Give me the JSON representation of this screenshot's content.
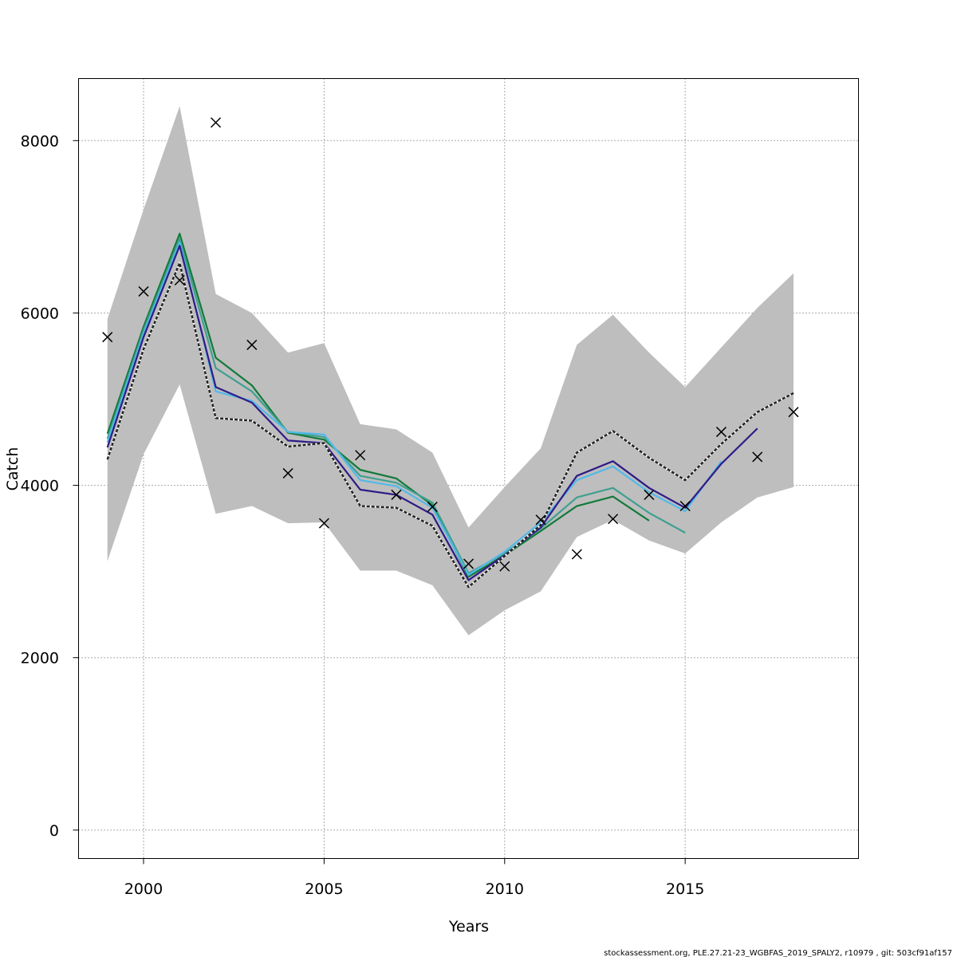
{
  "chart_data": {
    "type": "line",
    "xlabel": "Years",
    "ylabel": "Catch",
    "xlim": [
      1998.2,
      2019.8
    ],
    "ylim": [
      -330,
      8720
    ],
    "x_ticks": [
      2000,
      2005,
      2010,
      2015
    ],
    "y_ticks": [
      0,
      2000,
      4000,
      6000,
      8000
    ],
    "grid": true,
    "colors": {
      "band": "#bebebe",
      "base": "#222222",
      "s2017": "#2f1b87",
      "s2016": "#52b9e8",
      "s2015": "#3fa090",
      "s2014": "#127a3a"
    },
    "years": [
      1999,
      2000,
      2001,
      2002,
      2003,
      2004,
      2005,
      2006,
      2007,
      2008,
      2009,
      2010,
      2011,
      2012,
      2013,
      2014,
      2015,
      2016,
      2017,
      2018
    ],
    "band_upper": [
      5930,
      7200,
      8400,
      6220,
      6000,
      5540,
      5650,
      4710,
      4650,
      4380,
      3510,
      3980,
      4430,
      5630,
      5980,
      5540,
      5140,
      5600,
      6060,
      6460
    ],
    "band_lower": [
      3120,
      4360,
      5170,
      3670,
      3760,
      3560,
      3570,
      3010,
      3010,
      2840,
      2260,
      2550,
      2770,
      3400,
      3600,
      3360,
      3210,
      3570,
      3860,
      3980
    ],
    "base_line": [
      4300,
      5580,
      6580,
      4780,
      4750,
      4450,
      4490,
      3760,
      3740,
      3530,
      2820,
      3180,
      3540,
      4380,
      4630,
      4320,
      4060,
      4480,
      4850,
      5070
    ],
    "observed": [
      5720,
      6250,
      6380,
      8210,
      5630,
      4140,
      3560,
      4350,
      3890,
      3750,
      3090,
      3060,
      3600,
      3200,
      3610,
      3890,
      3760,
      4620,
      4330,
      4850
    ],
    "series": [
      {
        "color_key": "s2017",
        "x": [
          1999,
          2000,
          2001,
          2002,
          2003,
          2004,
          2005,
          2006,
          2007,
          2008,
          2009,
          2010,
          2011,
          2012,
          2013,
          2014,
          2015,
          2016,
          2017
        ],
        "values": [
          4440,
          5720,
          6780,
          5140,
          4960,
          4520,
          4490,
          3950,
          3890,
          3660,
          2900,
          3190,
          3510,
          4110,
          4280,
          3970,
          3740,
          4250,
          4660
        ]
      },
      {
        "color_key": "s2016",
        "x": [
          1999,
          2000,
          2001,
          2002,
          2003,
          2004,
          2005,
          2006,
          2007,
          2008,
          2009,
          2010,
          2011,
          2012,
          2013,
          2014,
          2015,
          2016
        ],
        "values": [
          4500,
          5760,
          6820,
          5090,
          4980,
          4620,
          4590,
          4060,
          3990,
          3740,
          2960,
          3230,
          3570,
          4060,
          4220,
          3920,
          3700,
          4280
        ]
      },
      {
        "color_key": "s2015",
        "x": [
          1999,
          2000,
          2001,
          2002,
          2003,
          2004,
          2005,
          2006,
          2007,
          2008,
          2009,
          2010,
          2011,
          2012,
          2013,
          2014,
          2015
        ],
        "values": [
          4540,
          5800,
          6860,
          5360,
          5090,
          4620,
          4560,
          4110,
          4030,
          3800,
          2980,
          3210,
          3500,
          3860,
          3970,
          3680,
          3450
        ]
      },
      {
        "color_key": "s2014",
        "x": [
          1999,
          2000,
          2001,
          2002,
          2003,
          2004,
          2005,
          2006,
          2007,
          2008,
          2009,
          2010,
          2011,
          2012,
          2013,
          2014
        ],
        "values": [
          4600,
          5840,
          6920,
          5480,
          5160,
          4610,
          4530,
          4180,
          4080,
          3770,
          2940,
          3190,
          3470,
          3760,
          3870,
          3590
        ]
      }
    ]
  },
  "footer_text": "stockassessment.org, PLE.27.21-23_WGBFAS_2019_SPALY2, r10979 , git: 503cf91af157"
}
